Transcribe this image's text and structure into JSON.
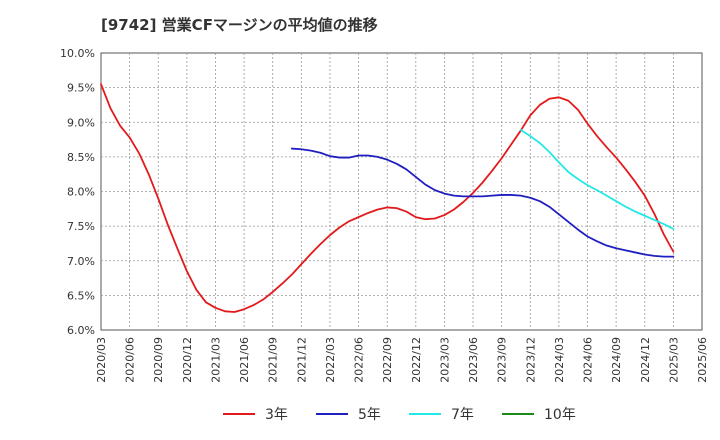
{
  "chart_data": {
    "type": "line",
    "title": "[9742]  営業CFマージンの平均値の推移",
    "xlabel": "",
    "ylabel": "",
    "ylim": [
      6.0,
      10.0
    ],
    "yticks": [
      "10.0%",
      "9.5%",
      "9.0%",
      "8.5%",
      "8.0%",
      "7.5%",
      "7.0%",
      "6.5%",
      "6.0%"
    ],
    "ytick_values": [
      10.0,
      9.5,
      9.0,
      8.5,
      8.0,
      7.5,
      7.0,
      6.5,
      6.0
    ],
    "xticks": [
      "2020/03",
      "2020/06",
      "2020/09",
      "2020/12",
      "2021/03",
      "2021/06",
      "2021/09",
      "2021/12",
      "2022/03",
      "2022/06",
      "2022/09",
      "2022/12",
      "2023/03",
      "2023/06",
      "2023/09",
      "2023/12",
      "2024/03",
      "2024/06",
      "2024/09",
      "2024/12",
      "2025/03",
      "2025/06"
    ],
    "grid": true,
    "legend_position": "bottom",
    "series": [
      {
        "name": "3年",
        "color": "#e31a1c",
        "points": [
          [
            "2020/03",
            9.55
          ],
          [
            "2020/04",
            9.2
          ],
          [
            "2020/05",
            8.95
          ],
          [
            "2020/06",
            8.78
          ],
          [
            "2020/07",
            8.55
          ],
          [
            "2020/08",
            8.25
          ],
          [
            "2020/09",
            7.9
          ],
          [
            "2020/10",
            7.52
          ],
          [
            "2020/11",
            7.18
          ],
          [
            "2020/12",
            6.85
          ],
          [
            "2021/01",
            6.58
          ],
          [
            "2021/02",
            6.4
          ],
          [
            "2021/03",
            6.32
          ],
          [
            "2021/04",
            6.27
          ],
          [
            "2021/05",
            6.26
          ],
          [
            "2021/06",
            6.3
          ],
          [
            "2021/07",
            6.36
          ],
          [
            "2021/08",
            6.44
          ],
          [
            "2021/09",
            6.55
          ],
          [
            "2021/10",
            6.67
          ],
          [
            "2021/11",
            6.8
          ],
          [
            "2021/12",
            6.95
          ],
          [
            "2022/01",
            7.1
          ],
          [
            "2022/02",
            7.24
          ],
          [
            "2022/03",
            7.37
          ],
          [
            "2022/04",
            7.48
          ],
          [
            "2022/05",
            7.57
          ],
          [
            "2022/06",
            7.63
          ],
          [
            "2022/07",
            7.69
          ],
          [
            "2022/08",
            7.74
          ],
          [
            "2022/09",
            7.77
          ],
          [
            "2022/10",
            7.76
          ],
          [
            "2022/11",
            7.71
          ],
          [
            "2022/12",
            7.63
          ],
          [
            "2023/01",
            7.6
          ],
          [
            "2023/02",
            7.61
          ],
          [
            "2023/03",
            7.66
          ],
          [
            "2023/04",
            7.74
          ],
          [
            "2023/05",
            7.85
          ],
          [
            "2023/06",
            7.98
          ],
          [
            "2023/07",
            8.13
          ],
          [
            "2023/08",
            8.3
          ],
          [
            "2023/09",
            8.48
          ],
          [
            "2023/10",
            8.68
          ],
          [
            "2023/11",
            8.88
          ],
          [
            "2023/12",
            9.1
          ],
          [
            "2024/01",
            9.25
          ],
          [
            "2024/02",
            9.34
          ],
          [
            "2024/03",
            9.36
          ],
          [
            "2024/04",
            9.31
          ],
          [
            "2024/05",
            9.18
          ],
          [
            "2024/06",
            8.98
          ],
          [
            "2024/07",
            8.8
          ],
          [
            "2024/08",
            8.64
          ],
          [
            "2024/09",
            8.49
          ],
          [
            "2024/10",
            8.32
          ],
          [
            "2024/11",
            8.14
          ],
          [
            "2024/12",
            7.94
          ],
          [
            "2025/01",
            7.68
          ],
          [
            "2025/02",
            7.38
          ],
          [
            "2025/03",
            7.13
          ]
        ]
      },
      {
        "name": "5年",
        "color": "#1f1fbf",
        "points": [
          [
            "2021/11",
            8.62
          ],
          [
            "2021/12",
            8.61
          ],
          [
            "2022/01",
            8.59
          ],
          [
            "2022/02",
            8.56
          ],
          [
            "2022/03",
            8.51
          ],
          [
            "2022/04",
            8.49
          ],
          [
            "2022/05",
            8.49
          ],
          [
            "2022/06",
            8.52
          ],
          [
            "2022/07",
            8.52
          ],
          [
            "2022/08",
            8.5
          ],
          [
            "2022/09",
            8.46
          ],
          [
            "2022/10",
            8.4
          ],
          [
            "2022/11",
            8.32
          ],
          [
            "2022/12",
            8.21
          ],
          [
            "2023/01",
            8.1
          ],
          [
            "2023/02",
            8.02
          ],
          [
            "2023/03",
            7.97
          ],
          [
            "2023/04",
            7.94
          ],
          [
            "2023/05",
            7.93
          ],
          [
            "2023/06",
            7.93
          ],
          [
            "2023/07",
            7.93
          ],
          [
            "2023/08",
            7.94
          ],
          [
            "2023/09",
            7.95
          ],
          [
            "2023/10",
            7.95
          ],
          [
            "2023/11",
            7.94
          ],
          [
            "2023/12",
            7.91
          ],
          [
            "2024/01",
            7.86
          ],
          [
            "2024/02",
            7.78
          ],
          [
            "2024/03",
            7.67
          ],
          [
            "2024/04",
            7.56
          ],
          [
            "2024/05",
            7.45
          ],
          [
            "2024/06",
            7.35
          ],
          [
            "2024/07",
            7.28
          ],
          [
            "2024/08",
            7.22
          ],
          [
            "2024/09",
            7.18
          ],
          [
            "2024/10",
            7.15
          ],
          [
            "2024/11",
            7.12
          ],
          [
            "2024/12",
            7.09
          ],
          [
            "2025/01",
            7.07
          ],
          [
            "2025/02",
            7.06
          ],
          [
            "2025/03",
            7.06
          ]
        ]
      },
      {
        "name": "7年",
        "color": "#22e8e8",
        "points": [
          [
            "2023/11",
            8.89
          ],
          [
            "2023/12",
            8.8
          ],
          [
            "2024/01",
            8.7
          ],
          [
            "2024/02",
            8.57
          ],
          [
            "2024/03",
            8.42
          ],
          [
            "2024/04",
            8.28
          ],
          [
            "2024/05",
            8.18
          ],
          [
            "2024/06",
            8.09
          ],
          [
            "2024/07",
            8.02
          ],
          [
            "2024/08",
            7.94
          ],
          [
            "2024/09",
            7.86
          ],
          [
            "2024/10",
            7.78
          ],
          [
            "2024/11",
            7.71
          ],
          [
            "2024/12",
            7.65
          ],
          [
            "2025/01",
            7.59
          ],
          [
            "2025/02",
            7.53
          ],
          [
            "2025/03",
            7.46
          ]
        ]
      },
      {
        "name": "10年",
        "color": "#1a8a1a",
        "points": []
      }
    ]
  }
}
